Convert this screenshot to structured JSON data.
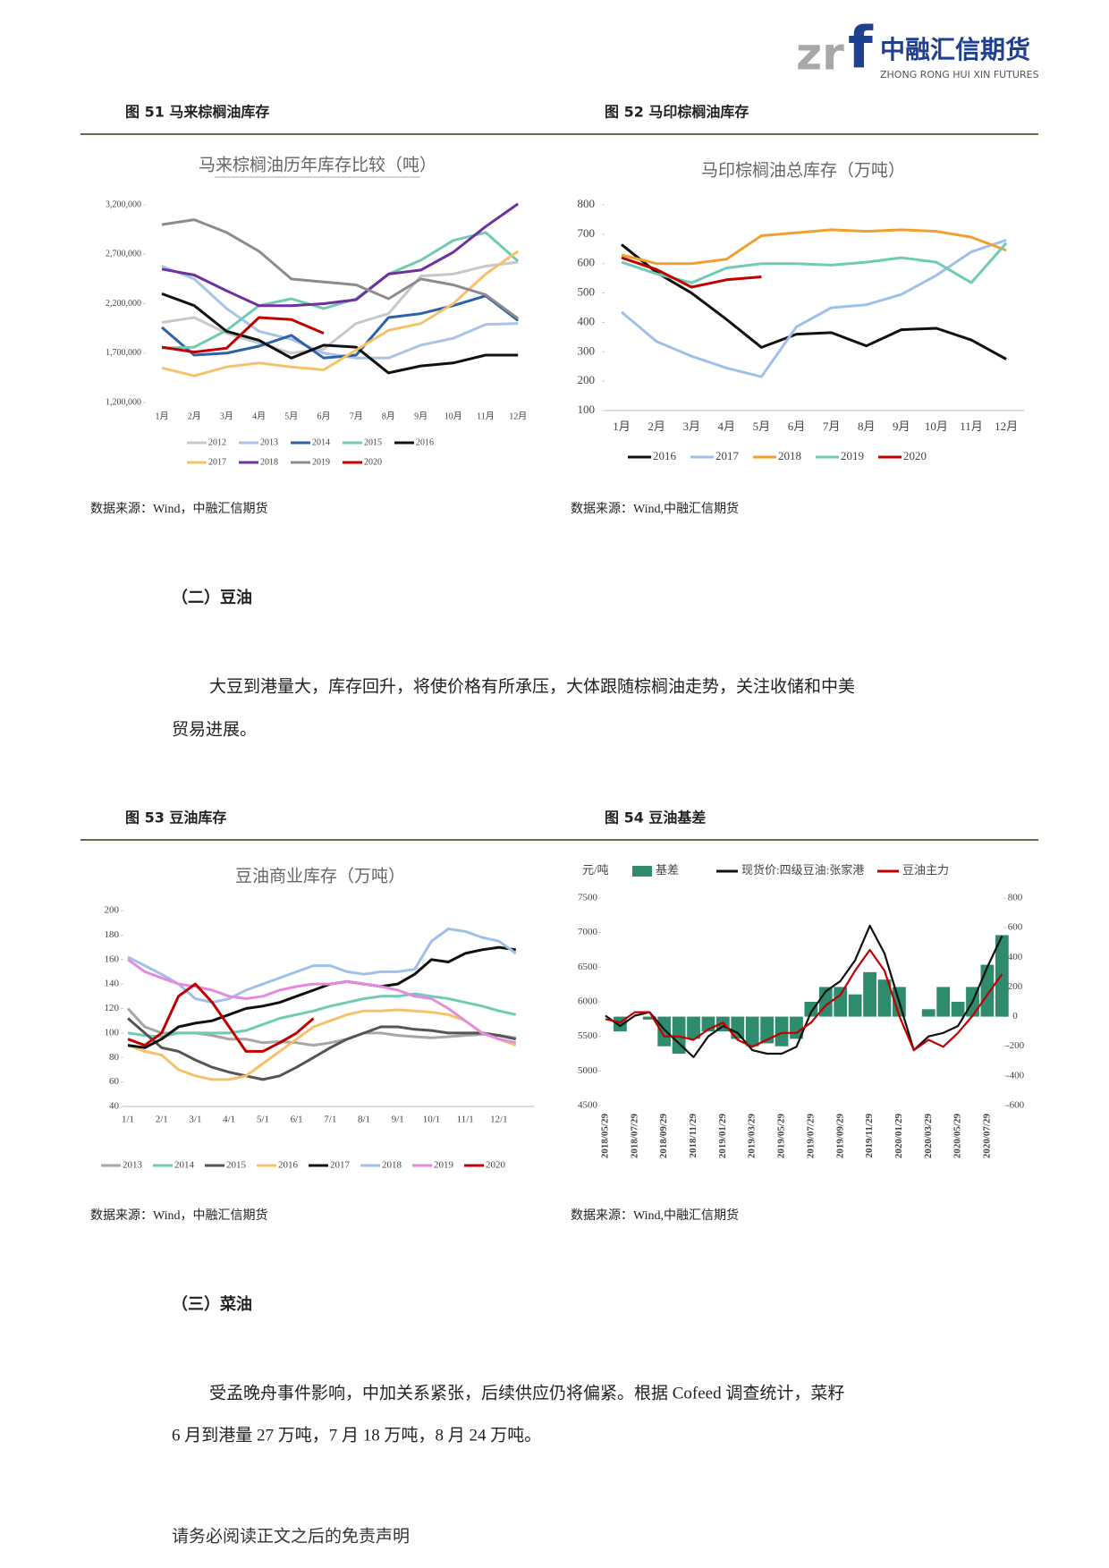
{
  "header": {
    "logo_mark_left": "zr",
    "logo_mark_right": "f",
    "brand": "中融汇信期货",
    "brand_en": "ZHONG RONG HUI XIN FUTURES"
  },
  "figures": [
    {
      "caption": "图 51 马来棕榈油库存",
      "source": "数据来源：Wind，中融汇信期货"
    },
    {
      "caption": "图 52 马印棕榈油库存",
      "source": "数据来源：Wind,中融汇信期货"
    },
    {
      "caption": "图 53 豆油库存",
      "source": "数据来源：Wind，中融汇信期货"
    },
    {
      "caption": "图 54 豆油基差",
      "source": "数据来源：Wind,中融汇信期货"
    }
  ],
  "sections": [
    {
      "heading": "（二）豆油",
      "lines": [
        "大豆到港量大，库存回升，将使价格有所承压，大体跟随棕榈油走势，关注收储和中美",
        "贸易进展。"
      ]
    },
    {
      "heading": "（三）菜油",
      "lines": [
        "受孟晚舟事件影响，中加关系紧张，后续供应仍将偏紧。根据 Cofeed 调查统计，菜籽",
        "6 月到港量 27 万吨，7 月 18 万吨，8 月 24 万吨。"
      ]
    }
  ],
  "footer": "请务必阅读正文之后的免责声明",
  "chart_data": [
    {
      "type": "line",
      "title": "马来棕榈油历年库存比较（吨）",
      "categories": [
        "1月",
        "2月",
        "3月",
        "4月",
        "5月",
        "6月",
        "7月",
        "8月",
        "9月",
        "10月",
        "11月",
        "12月"
      ],
      "ylim": [
        1200000,
        3200000
      ],
      "yticks": [
        {
          "value": 1200000,
          "label": "1,200,000"
        },
        {
          "value": 1700000,
          "label": "1,700,000"
        },
        {
          "value": 2200000,
          "label": "2,200,000"
        },
        {
          "value": 2700000,
          "label": "2,700,000"
        },
        {
          "value": 3200000,
          "label": "3,200,000"
        }
      ],
      "grid": false,
      "series": [
        {
          "name": "2012",
          "color": "#c8c8c8",
          "values": [
            2010000,
            2060000,
            1900000,
            1800000,
            1700000,
            1740000,
            2000000,
            2100000,
            2480000,
            2500000,
            2580000,
            2620000
          ]
        },
        {
          "name": "2013",
          "color": "#a9c4e4",
          "values": [
            2580000,
            2450000,
            2150000,
            1920000,
            1840000,
            1700000,
            1650000,
            1650000,
            1780000,
            1850000,
            1990000,
            2000000
          ]
        },
        {
          "name": "2014",
          "color": "#2e62a8",
          "values": [
            1960000,
            1680000,
            1700000,
            1770000,
            1880000,
            1650000,
            1680000,
            2060000,
            2100000,
            2180000,
            2280000,
            2030000
          ]
        },
        {
          "name": "2015",
          "color": "#6fcbb4",
          "values": [
            1750000,
            1760000,
            1930000,
            2180000,
            2250000,
            2150000,
            2250000,
            2500000,
            2640000,
            2840000,
            2920000,
            2630000
          ]
        },
        {
          "name": "2016",
          "color": "#111111",
          "values": [
            2300000,
            2180000,
            1920000,
            1830000,
            1650000,
            1780000,
            1760000,
            1500000,
            1570000,
            1600000,
            1680000,
            1680000
          ]
        },
        {
          "name": "2017",
          "color": "#f5c26b",
          "values": [
            1550000,
            1470000,
            1560000,
            1600000,
            1560000,
            1530000,
            1730000,
            1930000,
            2000000,
            2200000,
            2500000,
            2730000
          ]
        },
        {
          "name": "2018",
          "color": "#7030a0",
          "values": [
            2550000,
            2490000,
            2330000,
            2180000,
            2180000,
            2200000,
            2240000,
            2500000,
            2540000,
            2720000,
            2980000,
            3210000
          ]
        },
        {
          "name": "2019",
          "color": "#8c8c8c",
          "values": [
            3000000,
            3050000,
            2920000,
            2730000,
            2450000,
            2420000,
            2390000,
            2250000,
            2450000,
            2390000,
            2290000,
            2050000
          ]
        },
        {
          "name": "2020",
          "color": "#c00000",
          "values": [
            1760000,
            1710000,
            1750000,
            2060000,
            2040000,
            1900000,
            null,
            null,
            null,
            null,
            null,
            null
          ]
        }
      ]
    },
    {
      "type": "line",
      "title": "马印棕榈油总库存（万吨）",
      "categories": [
        "1月",
        "2月",
        "3月",
        "4月",
        "5月",
        "6月",
        "7月",
        "8月",
        "9月",
        "10月",
        "11月",
        "12月"
      ],
      "ylim": [
        100,
        800
      ],
      "yticks": [
        100,
        200,
        300,
        400,
        500,
        600,
        700,
        800
      ],
      "grid": false,
      "series": [
        {
          "name": "2016",
          "color": "#111111",
          "values": [
            665,
            570,
            500,
            410,
            315,
            360,
            365,
            320,
            375,
            380,
            340,
            275
          ]
        },
        {
          "name": "2017",
          "color": "#9fc0e8",
          "values": [
            435,
            335,
            285,
            245,
            215,
            385,
            450,
            460,
            495,
            560,
            640,
            680
          ]
        },
        {
          "name": "2018",
          "color": "#f0a030",
          "values": [
            630,
            600,
            600,
            615,
            695,
            705,
            715,
            710,
            715,
            710,
            690,
            645
          ]
        },
        {
          "name": "2019",
          "color": "#6fcbb4",
          "values": [
            605,
            565,
            535,
            585,
            600,
            600,
            595,
            605,
            620,
            605,
            535,
            670
          ]
        },
        {
          "name": "2020",
          "color": "#c00000",
          "values": [
            620,
            580,
            520,
            545,
            555,
            null,
            null,
            null,
            null,
            null,
            null,
            null
          ]
        }
      ]
    },
    {
      "type": "line",
      "title": "豆油商业库存（万吨）",
      "categories": [
        "1/1",
        null,
        "2/1",
        null,
        "3/1",
        null,
        "4/1",
        null,
        "5/1",
        null,
        "6/1",
        null,
        "7/1",
        null,
        "8/1",
        null,
        "9/1",
        null,
        "10/1",
        null,
        "11/1",
        null,
        "12/1",
        null
      ],
      "ylim": [
        40,
        200
      ],
      "yticks": [
        40,
        60,
        80,
        100,
        120,
        140,
        160,
        180,
        200
      ],
      "grid": false,
      "series": [
        {
          "name": "2013",
          "color": "#a6a6a6",
          "values": [
            120,
            105,
            100,
            100,
            100,
            98,
            95,
            95,
            92,
            93,
            92,
            90,
            92,
            95,
            100,
            100,
            98,
            97,
            96,
            97,
            98,
            99,
            98,
            96
          ]
        },
        {
          "name": "2014",
          "color": "#6fcbb4",
          "values": [
            100,
            98,
            97,
            100,
            100,
            100,
            100,
            102,
            107,
            112,
            115,
            118,
            122,
            125,
            128,
            130,
            130,
            132,
            130,
            128,
            125,
            122,
            118,
            115
          ]
        },
        {
          "name": "2015",
          "color": "#555555",
          "values": [
            112,
            100,
            88,
            85,
            78,
            72,
            68,
            65,
            62,
            65,
            72,
            80,
            88,
            95,
            100,
            105,
            105,
            103,
            102,
            100,
            100,
            100,
            98,
            95
          ]
        },
        {
          "name": "2016",
          "color": "#f5c26b",
          "values": [
            90,
            85,
            82,
            70,
            65,
            62,
            62,
            65,
            75,
            85,
            95,
            105,
            110,
            115,
            118,
            118,
            119,
            118,
            117,
            115,
            110,
            100,
            95,
            90
          ]
        },
        {
          "name": "2017",
          "color": "#111111",
          "values": [
            90,
            88,
            95,
            105,
            108,
            110,
            115,
            120,
            122,
            125,
            130,
            135,
            140,
            142,
            140,
            138,
            140,
            148,
            160,
            158,
            165,
            168,
            170,
            168
          ]
        },
        {
          "name": "2018",
          "color": "#9fc0e8",
          "values": [
            162,
            155,
            148,
            140,
            128,
            125,
            128,
            135,
            140,
            145,
            150,
            155,
            155,
            150,
            148,
            150,
            150,
            152,
            175,
            185,
            183,
            178,
            175,
            165
          ]
        },
        {
          "name": "2019",
          "color": "#e58ae0",
          "values": [
            160,
            150,
            145,
            140,
            138,
            135,
            130,
            128,
            130,
            135,
            138,
            140,
            140,
            142,
            140,
            138,
            135,
            130,
            128,
            120,
            110,
            100,
            95,
            92
          ]
        },
        {
          "name": "2020",
          "color": "#c00000",
          "values": [
            95,
            90,
            100,
            130,
            140,
            125,
            105,
            85,
            85,
            92,
            100,
            112,
            null,
            null,
            null,
            null,
            null,
            null,
            null,
            null,
            null,
            null,
            null,
            null
          ]
        }
      ]
    },
    {
      "type": "combo",
      "y_label": "元/吨",
      "categories": [
        "2018/05/29",
        null,
        "2018/07/29",
        null,
        "2018/09/29",
        null,
        "2018/11/29",
        null,
        "2019/01/29",
        null,
        "2019/03/29",
        null,
        "2019/05/29",
        null,
        "2019/07/29",
        null,
        "2019/09/29",
        null,
        "2019/11/29",
        null,
        "2020/01/29",
        null,
        "2020/03/29",
        null,
        "2020/05/29",
        null,
        "2020/07/29",
        null
      ],
      "ylim": [
        4500,
        7500
      ],
      "yticks": [
        4500,
        5000,
        5500,
        6000,
        6500,
        7000,
        7500
      ],
      "y2lim": [
        -600,
        800
      ],
      "y2ticks": [
        -600,
        -400,
        -200,
        0,
        200,
        400,
        600,
        800
      ],
      "grid": false,
      "series": [
        {
          "name": "基差",
          "type": "bar",
          "axis": "y2",
          "color": "#2e8b6e",
          "values": [
            0,
            -100,
            0,
            -20,
            -200,
            -250,
            -150,
            -100,
            -100,
            -150,
            -200,
            -180,
            -200,
            -150,
            100,
            200,
            200,
            150,
            300,
            250,
            200,
            0,
            50,
            200,
            100,
            200,
            350,
            550
          ]
        },
        {
          "name": "现货价:四级豆油:张家港",
          "type": "line",
          "color": "#111111",
          "values": [
            5800,
            5650,
            5800,
            5850,
            5600,
            5400,
            5200,
            5500,
            5650,
            5550,
            5300,
            5250,
            5250,
            5350,
            5850,
            6150,
            6300,
            6600,
            7100,
            6700,
            6000,
            5300,
            5500,
            5550,
            5650,
            6000,
            6500,
            6950
          ]
        },
        {
          "name": "豆油主力",
          "type": "line",
          "color": "#c00000",
          "values": [
            5750,
            5700,
            5850,
            5850,
            5500,
            5500,
            5450,
            5600,
            5700,
            5450,
            5350,
            5450,
            5550,
            5550,
            5700,
            5950,
            6100,
            6450,
            6750,
            6450,
            5800,
            5300,
            5450,
            5350,
            5550,
            5800,
            6100,
            6400
          ]
        }
      ]
    }
  ]
}
